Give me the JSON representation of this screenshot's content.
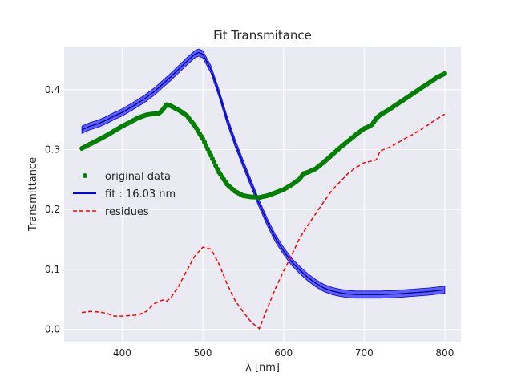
{
  "chart_data": {
    "type": "line",
    "title": "Fit Transmitance",
    "xlabel": "λ [nm]",
    "ylabel": "Transmittance",
    "xlim": [
      328,
      820
    ],
    "ylim": [
      -0.022,
      0.472
    ],
    "xticks": [
      400,
      500,
      600,
      700,
      800
    ],
    "xtick_labels": [
      "400",
      "500",
      "600",
      "700",
      "800"
    ],
    "yticks": [
      0.0,
      0.1,
      0.2,
      0.3,
      0.4
    ],
    "ytick_labels": [
      "0.0",
      "0.1",
      "0.2",
      "0.3",
      "0.4"
    ],
    "grid": true,
    "legend_position": "center-left",
    "colors": {
      "background": "#EAEAF2",
      "grid": "#FFFFFF",
      "original": "#008000",
      "fit": "#0000FF",
      "fit_band": "#0000FF",
      "residues": "#FF0000"
    },
    "series": [
      {
        "name": "original data",
        "style": "dots",
        "x": [
          350,
          360,
          370,
          380,
          390,
          400,
          410,
          420,
          430,
          440,
          445,
          450,
          455,
          460,
          470,
          480,
          490,
          500,
          510,
          520,
          530,
          540,
          550,
          560,
          570,
          580,
          590,
          600,
          610,
          620,
          625,
          630,
          640,
          650,
          660,
          670,
          680,
          690,
          700,
          705,
          710,
          715,
          720,
          730,
          740,
          750,
          760,
          770,
          780,
          790,
          800
        ],
        "y": [
          0.302,
          0.309,
          0.316,
          0.323,
          0.331,
          0.339,
          0.346,
          0.353,
          0.358,
          0.36,
          0.36,
          0.366,
          0.375,
          0.373,
          0.366,
          0.357,
          0.34,
          0.318,
          0.29,
          0.262,
          0.242,
          0.23,
          0.223,
          0.221,
          0.22,
          0.223,
          0.228,
          0.233,
          0.241,
          0.251,
          0.26,
          0.262,
          0.268,
          0.279,
          0.291,
          0.303,
          0.314,
          0.325,
          0.335,
          0.338,
          0.342,
          0.352,
          0.358,
          0.366,
          0.375,
          0.384,
          0.393,
          0.402,
          0.411,
          0.42,
          0.427
        ]
      },
      {
        "name": "fit : 16.03 nm",
        "style": "line_band",
        "band_halfwidth": 0.006,
        "x": [
          350,
          360,
          370,
          380,
          390,
          400,
          410,
          420,
          430,
          440,
          450,
          460,
          470,
          480,
          490,
          495,
          500,
          510,
          520,
          530,
          540,
          550,
          560,
          570,
          580,
          590,
          600,
          610,
          620,
          630,
          640,
          650,
          660,
          670,
          680,
          690,
          700,
          720,
          740,
          760,
          780,
          800
        ],
        "y": [
          0.333,
          0.339,
          0.343,
          0.349,
          0.356,
          0.362,
          0.37,
          0.378,
          0.387,
          0.397,
          0.409,
          0.421,
          0.434,
          0.447,
          0.459,
          0.462,
          0.459,
          0.434,
          0.394,
          0.35,
          0.311,
          0.276,
          0.243,
          0.209,
          0.179,
          0.152,
          0.131,
          0.113,
          0.099,
          0.087,
          0.077,
          0.069,
          0.064,
          0.061,
          0.059,
          0.058,
          0.058,
          0.058,
          0.059,
          0.061,
          0.063,
          0.066
        ]
      },
      {
        "name": "residues",
        "style": "dashed",
        "x": [
          350,
          360,
          370,
          380,
          390,
          400,
          410,
          420,
          430,
          440,
          450,
          455,
          460,
          470,
          480,
          490,
          500,
          510,
          520,
          530,
          540,
          550,
          560,
          570,
          580,
          590,
          600,
          610,
          620,
          630,
          640,
          650,
          660,
          670,
          680,
          690,
          700,
          710,
          715,
          720,
          730,
          740,
          750,
          760,
          770,
          780,
          790,
          800
        ],
        "y": [
          0.028,
          0.03,
          0.029,
          0.027,
          0.022,
          0.022,
          0.023,
          0.024,
          0.03,
          0.043,
          0.049,
          0.047,
          0.052,
          0.072,
          0.098,
          0.122,
          0.137,
          0.134,
          0.109,
          0.076,
          0.048,
          0.029,
          0.012,
          0.001,
          0.035,
          0.068,
          0.097,
          0.123,
          0.152,
          0.173,
          0.193,
          0.213,
          0.232,
          0.246,
          0.26,
          0.27,
          0.278,
          0.281,
          0.283,
          0.298,
          0.303,
          0.31,
          0.318,
          0.325,
          0.333,
          0.342,
          0.351,
          0.359
        ]
      }
    ]
  }
}
